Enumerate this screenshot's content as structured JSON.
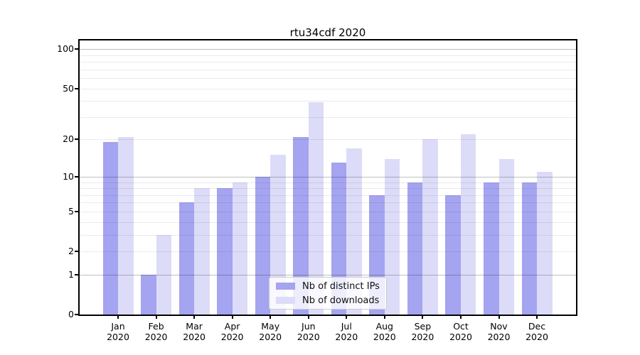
{
  "chart_data": {
    "type": "bar",
    "title": "rtu34cdf 2020",
    "y_scale": "log1p",
    "ylim": [
      0,
      100
    ],
    "grid": true,
    "ytick_values": [
      100,
      50,
      20,
      10,
      5,
      2,
      1,
      0
    ],
    "ytick_labels": [
      "100",
      "50",
      "20",
      "10",
      "5",
      "2",
      "1",
      "0"
    ],
    "major_gridline_values": [
      1,
      10,
      100
    ],
    "minor_gridline_values": [
      2,
      3,
      4,
      5,
      6,
      7,
      8,
      9,
      20,
      30,
      40,
      50,
      60,
      70,
      80,
      90
    ],
    "categories": [
      "Jan",
      "Feb",
      "Mar",
      "Apr",
      "May",
      "Jun",
      "Jul",
      "Aug",
      "Sep",
      "Oct",
      "Nov",
      "Dec"
    ],
    "category_year": "2020",
    "series": [
      {
        "name": "Nb of distinct IPs",
        "color": "#a4a4f0",
        "values": [
          19,
          1,
          6,
          8,
          10,
          21,
          13,
          7,
          9,
          7,
          9,
          9
        ]
      },
      {
        "name": "Nb of downloads",
        "color": "#dcdcf8",
        "values": [
          21,
          3,
          8,
          9,
          15,
          39,
          17,
          14,
          20,
          22,
          14,
          11
        ]
      }
    ],
    "legend": {
      "position": "lower center",
      "entries": [
        "Nb of distinct IPs",
        "Nb of downloads"
      ]
    }
  },
  "colors": {
    "background": "#ffffff",
    "axis": "#000000",
    "text": "#000000",
    "major_grid": "#c5c5c5",
    "minor_grid": "#ebebeb",
    "legend_border": "#cccccc"
  }
}
